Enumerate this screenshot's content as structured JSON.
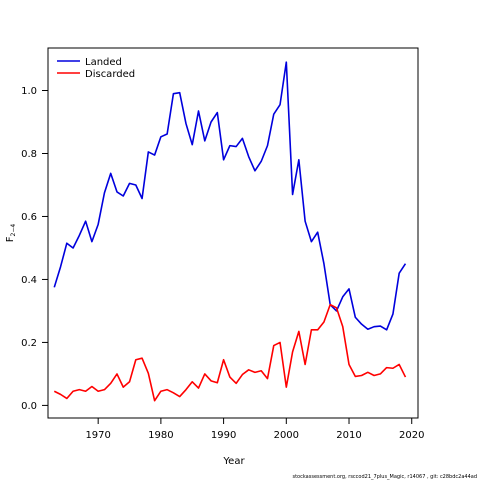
{
  "chart_data": {
    "type": "line",
    "xlabel": "Year",
    "ylabel_main": "F",
    "ylabel_sub": "2−4",
    "xlim": [
      1962,
      2021
    ],
    "ylim": [
      -0.04,
      1.135
    ],
    "xticks": [
      1970,
      1980,
      1990,
      2000,
      2010,
      2020
    ],
    "yticks": [
      0.0,
      0.2,
      0.4,
      0.6,
      0.8,
      1.0
    ],
    "ytick_labels": [
      "0.0",
      "0.2",
      "0.4",
      "0.6",
      "0.8",
      "1.0"
    ],
    "legend_position": "top-left",
    "x": [
      1963,
      1964,
      1965,
      1966,
      1967,
      1968,
      1969,
      1970,
      1971,
      1972,
      1973,
      1974,
      1975,
      1976,
      1977,
      1978,
      1979,
      1980,
      1981,
      1982,
      1983,
      1984,
      1985,
      1986,
      1987,
      1988,
      1989,
      1990,
      1991,
      1992,
      1993,
      1994,
      1995,
      1996,
      1997,
      1998,
      1999,
      2000,
      2001,
      2002,
      2003,
      2004,
      2005,
      2006,
      2007,
      2008,
      2009,
      2010,
      2011,
      2012,
      2013,
      2014,
      2015,
      2016,
      2017,
      2018,
      2019
    ],
    "series": [
      {
        "name": "Landed",
        "color": "#0000dd",
        "values": [
          0.375,
          0.44,
          0.515,
          0.5,
          0.54,
          0.585,
          0.52,
          0.575,
          0.675,
          0.737,
          0.678,
          0.665,
          0.705,
          0.7,
          0.657,
          0.805,
          0.795,
          0.853,
          0.862,
          0.99,
          0.993,
          0.895,
          0.828,
          0.935,
          0.84,
          0.9,
          0.93,
          0.78,
          0.825,
          0.822,
          0.848,
          0.79,
          0.745,
          0.775,
          0.825,
          0.925,
          0.955,
          1.09,
          0.67,
          0.78,
          0.585,
          0.52,
          0.55,
          0.45,
          0.32,
          0.3,
          0.345,
          0.37,
          0.28,
          0.258,
          0.242,
          0.25,
          0.252,
          0.24,
          0.29,
          0.42,
          0.45
        ]
      },
      {
        "name": "Discarded",
        "color": "#ff0000",
        "values": [
          0.045,
          0.035,
          0.022,
          0.045,
          0.05,
          0.045,
          0.06,
          0.045,
          0.05,
          0.07,
          0.1,
          0.058,
          0.075,
          0.145,
          0.15,
          0.102,
          0.015,
          0.045,
          0.05,
          0.04,
          0.028,
          0.05,
          0.075,
          0.055,
          0.1,
          0.078,
          0.072,
          0.145,
          0.09,
          0.07,
          0.098,
          0.113,
          0.105,
          0.11,
          0.085,
          0.19,
          0.2,
          0.058,
          0.17,
          0.235,
          0.13,
          0.24,
          0.24,
          0.265,
          0.32,
          0.31,
          0.25,
          0.13,
          0.092,
          0.095,
          0.105,
          0.095,
          0.1,
          0.12,
          0.118,
          0.13,
          0.09
        ]
      }
    ]
  },
  "footer_text": "stockassessment.org,  rsccod21_7plus_Magic,  r14067 ,  git:  c28bdc2a44ad"
}
